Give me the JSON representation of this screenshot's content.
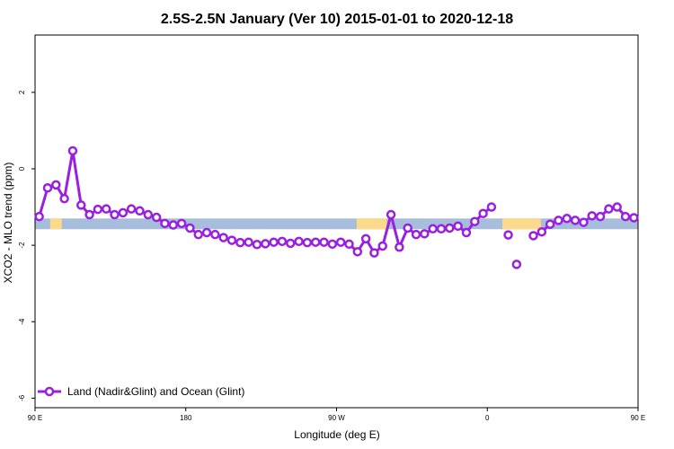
{
  "chart_data": {
    "type": "line",
    "title": "2.5S-2.5N January (Ver 10)   2015-01-01 to 2020-12-18",
    "xlabel": "Longitude (deg E)",
    "ylabel": "XCO2 - MLO trend (ppm)",
    "xlim": [
      90,
      450
    ],
    "ylim": [
      -6.25,
      3.5
    ],
    "x_ticks": [
      {
        "value": 90,
        "label": "90 E"
      },
      {
        "value": 180,
        "label": "180"
      },
      {
        "value": 270,
        "label": "90 W"
      },
      {
        "value": 360,
        "label": "0"
      },
      {
        "value": 450,
        "label": "90 E"
      },
      {
        "value": 540,
        "label": "180"
      }
    ],
    "y_ticks": [
      {
        "value": 2,
        "label": "2"
      },
      {
        "value": 0,
        "label": "0"
      },
      {
        "value": -2,
        "label": "-2"
      },
      {
        "value": -4,
        "label": "-4"
      },
      {
        "value": -6,
        "label": "-6"
      }
    ],
    "grid": false,
    "legend_position": "bottom-left",
    "surface_band": {
      "y_range": [
        -1.58,
        -1.3
      ],
      "ocean_color": "#a6bddb",
      "land_color": "#fdd98b",
      "land_segments": [
        [
          99,
          106
        ],
        [
          282,
          300
        ],
        [
          369,
          392
        ],
        [
          450,
          460
        ],
        [
          465,
          478
        ]
      ]
    },
    "series": [
      {
        "name": "Land (Nadir&Glint) and Ocean (Glint)",
        "color": "#9a1fe0",
        "segments": [
          {
            "x": [
              92.5,
              97.5,
              102.5,
              107.5,
              112.5,
              117.5,
              122.5,
              127.5,
              132.5,
              137.5,
              142.5,
              147.5,
              152.5,
              157.5,
              162.5,
              167.5,
              172.5,
              177.5,
              182.5,
              187.5,
              192.5,
              197.5,
              202.5,
              207.5,
              212.5,
              217.5,
              222.5,
              227.5,
              232.5,
              237.5,
              242.5,
              247.5,
              252.5,
              257.5,
              262.5,
              267.5,
              272.5,
              277.5,
              282.5,
              287.5,
              292.5,
              297.5,
              302.5,
              307.5,
              312.5,
              317.5,
              322.5,
              327.5,
              332.5,
              337.5,
              342.5,
              347.5,
              352.5,
              357.5,
              362.5
            ],
            "y": [
              -1.25,
              -0.5,
              -0.42,
              -0.78,
              0.47,
              -0.95,
              -1.2,
              -1.06,
              -1.05,
              -1.2,
              -1.15,
              -1.05,
              -1.1,
              -1.2,
              -1.27,
              -1.43,
              -1.47,
              -1.43,
              -1.55,
              -1.72,
              -1.67,
              -1.72,
              -1.8,
              -1.87,
              -1.93,
              -1.92,
              -1.98,
              -1.96,
              -1.92,
              -1.9,
              -1.95,
              -1.9,
              -1.93,
              -1.92,
              -1.92,
              -1.97,
              -1.92,
              -1.97,
              -2.17,
              -1.83,
              -2.2,
              -2.02,
              -1.2,
              -2.05,
              -1.55,
              -1.72,
              -1.7,
              -1.57,
              -1.57,
              -1.55,
              -1.5,
              -1.67,
              -1.38,
              -1.17,
              -1.0
            ]
          },
          {
            "x": [
              372.5
            ],
            "y": [
              -1.73
            ]
          },
          {
            "x": [
              377.5
            ],
            "y": [
              -2.5
            ]
          },
          {
            "x": [
              387.5,
              392.5,
              397.5,
              402.5,
              407.5,
              412.5,
              417.5,
              422.5,
              427.5,
              432.5,
              437.5,
              442.5,
              447.5,
              452.5,
              457.5,
              462.5,
              467.5,
              472.5,
              477.5,
              482.5,
              487.5,
              492.5,
              497.5,
              502.5,
              507.5,
              512.5,
              517.5,
              522.5,
              527.5,
              532.5,
              537.5
            ],
            "y": [
              -1.75,
              -1.65,
              -1.45,
              -1.35,
              -1.3,
              -1.35,
              -1.4,
              -1.23,
              -1.25,
              -1.05,
              -1.0,
              -1.25,
              -1.28,
              -0.52,
              -0.42,
              -0.78,
              0.47,
              -0.95,
              -1.2,
              -1.06,
              -1.05,
              -1.2,
              -1.15,
              -1.05,
              -1.1,
              -1.2,
              -1.27,
              -1.43,
              -1.47,
              -1.43,
              -1.45
            ]
          }
        ]
      }
    ]
  }
}
